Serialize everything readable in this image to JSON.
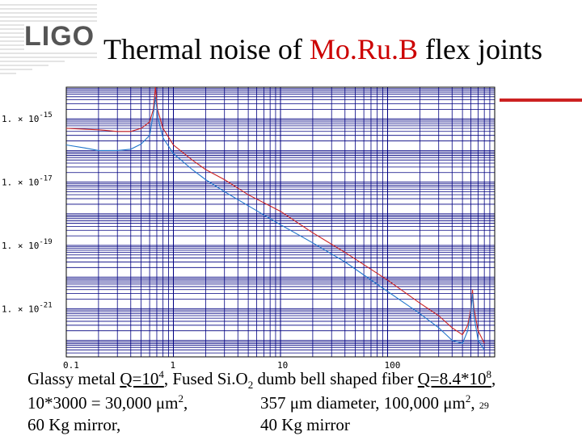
{
  "logo": {
    "text": "LIGO"
  },
  "title": {
    "prefix": "Thermal noise of ",
    "accent": "Mo.Ru.B",
    "suffix": " flex joints"
  },
  "colors": {
    "accent": "#cc0000",
    "red_series": "#cc2222",
    "blue_series": "#2277cc",
    "grid": "#000080"
  },
  "chart_data": {
    "type": "line",
    "x_scale": "log",
    "y_scale": "log",
    "xlim": [
      0.1,
      1000
    ],
    "ylim": [
      3e-23,
      1e-14
    ],
    "grid": true,
    "xticks": [
      {
        "value": 0.1,
        "label": "0.1"
      },
      {
        "value": 1,
        "label": "1"
      },
      {
        "value": 10,
        "label": "10"
      },
      {
        "value": 100,
        "label": "100"
      }
    ],
    "yticks": [
      {
        "value": 1e-15,
        "mantissa": "1.",
        "exp": "-15"
      },
      {
        "value": 1e-17,
        "mantissa": "1.",
        "exp": "-17"
      },
      {
        "value": 1e-19,
        "mantissa": "1.",
        "exp": "-19"
      },
      {
        "value": 1e-21,
        "mantissa": "1.",
        "exp": "-21"
      }
    ],
    "series": [
      {
        "color": "#cc2222",
        "points": [
          [
            0.1,
            5e-16
          ],
          [
            0.2,
            4.5e-16
          ],
          [
            0.3,
            4e-16
          ],
          [
            0.4,
            4e-16
          ],
          [
            0.5,
            5e-16
          ],
          [
            0.6,
            8e-16
          ],
          [
            0.65,
            2e-15
          ],
          [
            0.68,
            1e-14
          ],
          [
            0.71,
            2e-15
          ],
          [
            0.8,
            5e-16
          ],
          [
            1,
            1.5e-16
          ],
          [
            1.5,
            5e-17
          ],
          [
            2,
            2.5e-17
          ],
          [
            3,
            1.2e-17
          ],
          [
            5,
            4e-18
          ],
          [
            10,
            1.2e-18
          ],
          [
            20,
            2.5e-19
          ],
          [
            40,
            6e-20
          ],
          [
            100,
            8e-21
          ],
          [
            200,
            1.5e-21
          ],
          [
            300,
            6e-22
          ],
          [
            400,
            2.5e-22
          ],
          [
            500,
            1.5e-22
          ],
          [
            560,
            3e-22
          ],
          [
            600,
            1e-21
          ],
          [
            620,
            4e-21
          ],
          [
            640,
            1e-21
          ],
          [
            700,
            2e-22
          ],
          [
            800,
            8e-23
          ]
        ]
      },
      {
        "color": "#2277cc",
        "points": [
          [
            0.1,
            1.5e-16
          ],
          [
            0.15,
            1.2e-16
          ],
          [
            0.2,
            1e-16
          ],
          [
            0.3,
            1e-16
          ],
          [
            0.4,
            1.1e-16
          ],
          [
            0.5,
            1.6e-16
          ],
          [
            0.6,
            3e-16
          ],
          [
            0.66,
            2e-15
          ],
          [
            0.68,
            5e-15
          ],
          [
            0.72,
            1e-15
          ],
          [
            0.8,
            2.5e-16
          ],
          [
            1,
            8e-17
          ],
          [
            1.5,
            2.5e-17
          ],
          [
            2,
            1.2e-17
          ],
          [
            3,
            5e-18
          ],
          [
            5,
            1.8e-18
          ],
          [
            10,
            4.5e-19
          ],
          [
            20,
            1.2e-19
          ],
          [
            40,
            3e-20
          ],
          [
            100,
            3.5e-21
          ],
          [
            200,
            7e-22
          ],
          [
            300,
            2.5e-22
          ],
          [
            400,
            1e-22
          ],
          [
            500,
            8e-23
          ],
          [
            560,
            2e-22
          ],
          [
            600,
            8e-22
          ],
          [
            620,
            3e-21
          ],
          [
            640,
            6e-22
          ],
          [
            700,
            1e-22
          ],
          [
            800,
            5e-23
          ]
        ]
      }
    ]
  },
  "caption": {
    "line1_a": "Glassy metal ",
    "line1_b": "Q=10",
    "line1_b_sup": "4",
    "line1_c": ",  Fused Si.O",
    "line1_c_sub": "2",
    "line1_d": " dumb bell shaped fiber ",
    "line1_e": "Q=8.4*10",
    "line1_e_sup": "8",
    "line1_f": ",",
    "line2_a": "10*3000 = 30,000 ",
    "line2_a_mu": "m",
    "line2_a_sup": "2",
    "line2_a_end": ",",
    "line2_b": "357  ",
    "line2_b_mu": "m diameter, 100,000 ",
    "line2_b_mu2": "m",
    "line2_b_sup": "2",
    "line2_b_end": ",",
    "slide_number": "29",
    "line3_a": "60 Kg mirror,",
    "line3_b": "40 Kg mirror"
  }
}
